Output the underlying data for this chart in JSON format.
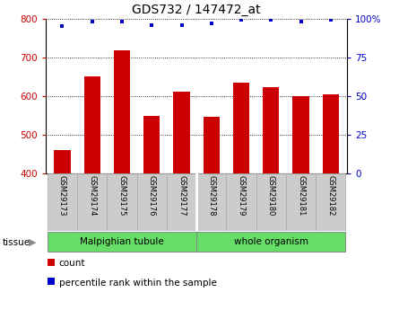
{
  "title": "GDS732 / 147472_at",
  "samples": [
    "GSM29173",
    "GSM29174",
    "GSM29175",
    "GSM29176",
    "GSM29177",
    "GSM29178",
    "GSM29179",
    "GSM29180",
    "GSM29181",
    "GSM29182"
  ],
  "counts": [
    460,
    650,
    718,
    550,
    612,
    547,
    635,
    622,
    601,
    604
  ],
  "percentiles": [
    95,
    98,
    98,
    96,
    96,
    97,
    99,
    99,
    98,
    99
  ],
  "tissue_label_group1": "Malpighian tubule",
  "tissue_label_group2": "whole organism",
  "bar_color": "#cc0000",
  "dot_color": "#0000cc",
  "ymin": 400,
  "ymax": 800,
  "yticks": [
    400,
    500,
    600,
    700,
    800
  ],
  "y2min": 0,
  "y2max": 100,
  "y2ticks": [
    0,
    25,
    50,
    75,
    100
  ],
  "label_bg_color": "#cccccc",
  "tissue_color": "#66dd66",
  "split_index": 4
}
